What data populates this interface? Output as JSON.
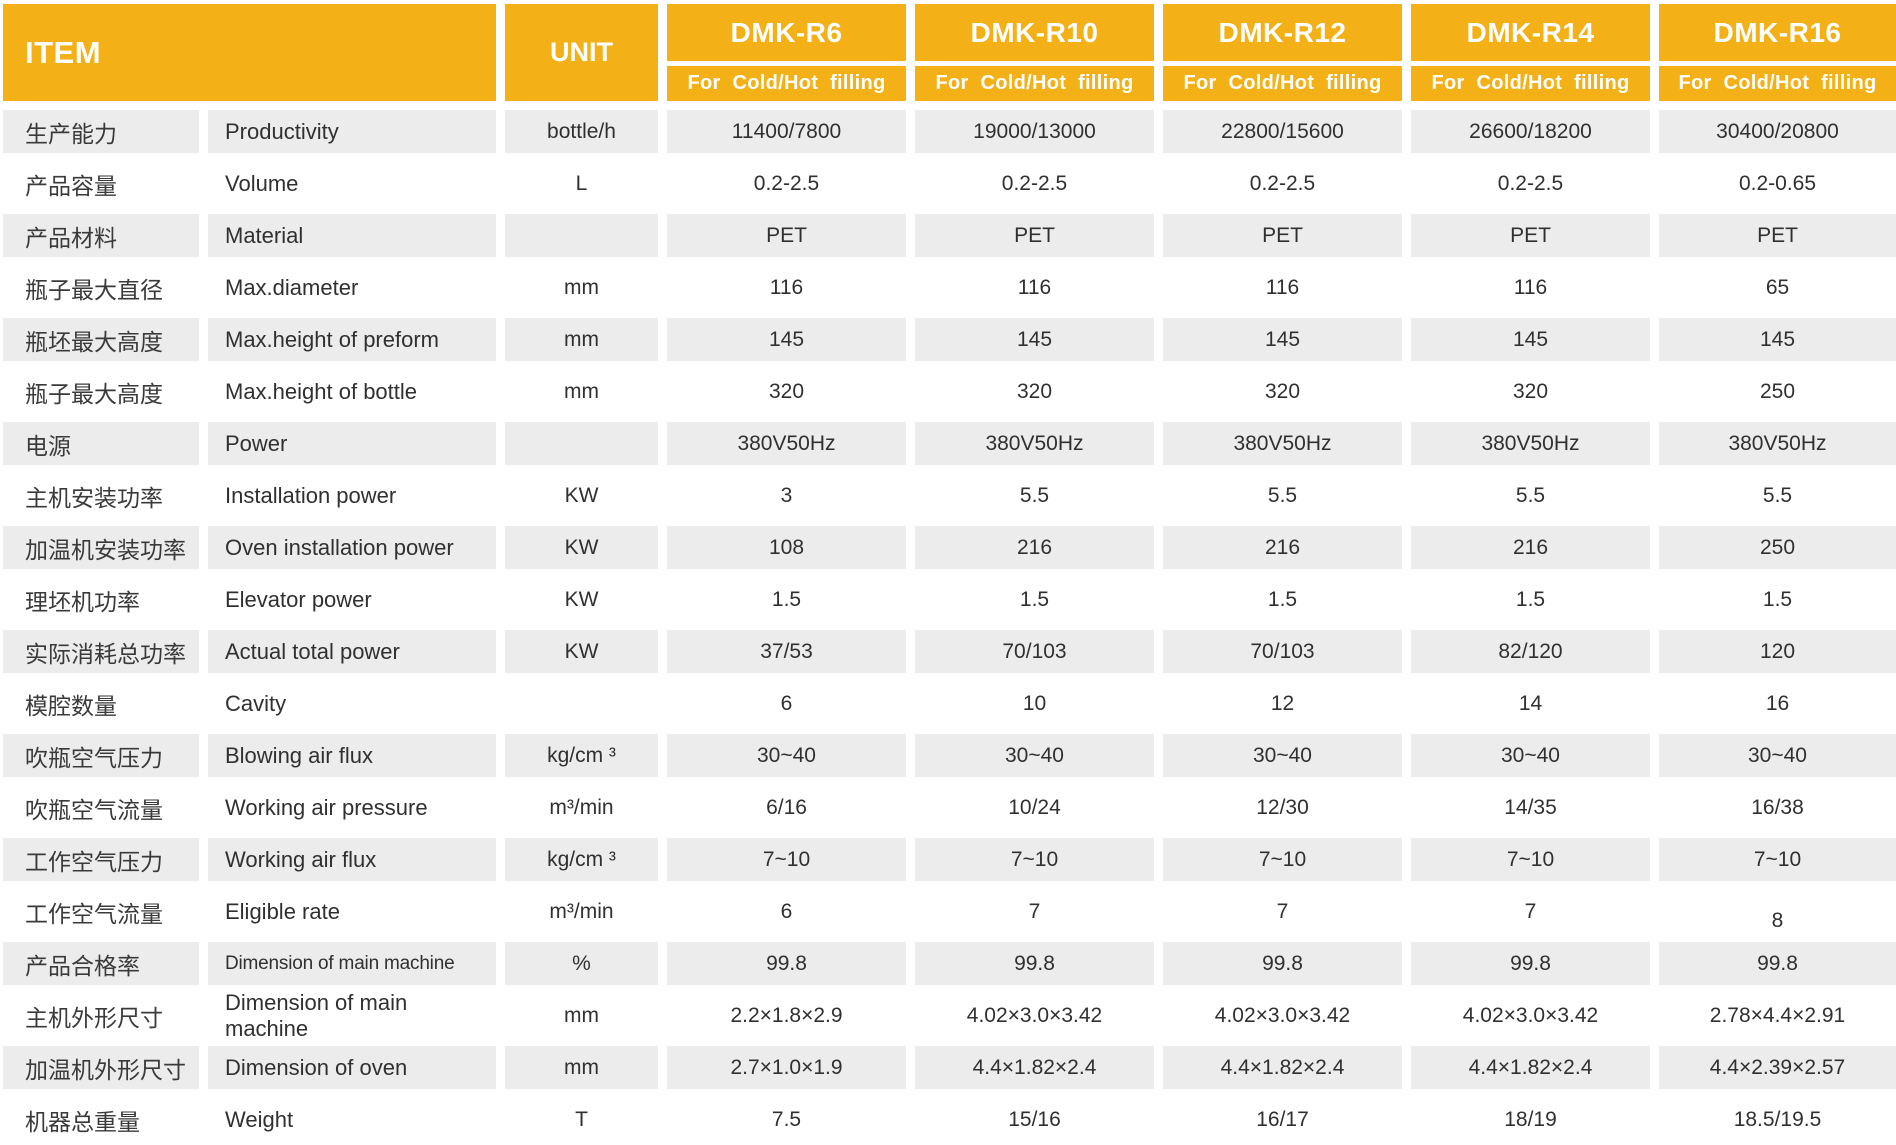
{
  "table": {
    "colors": {
      "header_bg": "#F3B117",
      "row_alt_bg": "#ECECEC",
      "header_text": "#FFFFFF",
      "body_text": "#303030"
    },
    "header": {
      "item_label": "ITEM",
      "unit_label": "UNIT",
      "models": [
        {
          "name": "DMK-R6",
          "sub": "For Cold/Hot filling"
        },
        {
          "name": "DMK-R10",
          "sub": "For Cold/Hot filling"
        },
        {
          "name": "DMK-R12",
          "sub": "For Cold/Hot filling"
        },
        {
          "name": "DMK-R14",
          "sub": "For Cold/Hot filling"
        },
        {
          "name": "DMK-R16",
          "sub": "For Cold/Hot filling"
        }
      ]
    },
    "rows": [
      {
        "zh": "生产能力",
        "en": "Productivity",
        "unit": "bottle/h",
        "values": [
          "11400/7800",
          "19000/13000",
          "22800/15600",
          "26600/18200",
          "30400/20800"
        ]
      },
      {
        "zh": "产品容量",
        "en": "Volume",
        "unit": "L",
        "values": [
          "0.2-2.5",
          "0.2-2.5",
          "0.2-2.5",
          "0.2-2.5",
          "0.2-0.65"
        ]
      },
      {
        "zh": "产品材料",
        "en": "Material",
        "unit": "",
        "values": [
          "PET",
          "PET",
          "PET",
          "PET",
          "PET"
        ]
      },
      {
        "zh": "瓶子最大直径",
        "en": "Max.diameter",
        "unit": "mm",
        "values": [
          "116",
          "116",
          "116",
          "116",
          "65"
        ]
      },
      {
        "zh": "瓶坯最大高度",
        "en": "Max.height of preform",
        "unit": "mm",
        "values": [
          "145",
          "145",
          "145",
          "145",
          "145"
        ]
      },
      {
        "zh": "瓶子最大高度",
        "en": "Max.height of bottle",
        "unit": "mm",
        "values": [
          "320",
          "320",
          "320",
          "320",
          "250"
        ]
      },
      {
        "zh": "电源",
        "en": "Power",
        "unit": "",
        "values": [
          "380V50Hz",
          "380V50Hz",
          "380V50Hz",
          "380V50Hz",
          "380V50Hz"
        ]
      },
      {
        "zh": "主机安装功率",
        "en": "Installation power",
        "unit": "KW",
        "values": [
          "3",
          "5.5",
          "5.5",
          "5.5",
          "5.5"
        ]
      },
      {
        "zh": "加温机安装功率",
        "en": "Oven installation power",
        "unit": "KW",
        "values": [
          "108",
          "216",
          "216",
          "216",
          "250"
        ]
      },
      {
        "zh": "理坯机功率",
        "en": "Elevator power",
        "unit": "KW",
        "values": [
          "1.5",
          "1.5",
          "1.5",
          "1.5",
          "1.5"
        ]
      },
      {
        "zh": "实际消耗总功率",
        "en": "Actual total power",
        "unit": "KW",
        "values": [
          "37/53",
          "70/103",
          "70/103",
          "82/120",
          "120"
        ]
      },
      {
        "zh": "模腔数量",
        "en": "Cavity",
        "unit": "",
        "values": [
          "6",
          "10",
          "12",
          "14",
          "16"
        ]
      },
      {
        "zh": "吹瓶空气压力",
        "en": "Blowing air flux",
        "unit": "kg/cm ³",
        "values": [
          "30~40",
          "30~40",
          "30~40",
          "30~40",
          "30~40"
        ]
      },
      {
        "zh": "吹瓶空气流量",
        "en": "Working air pressure",
        "unit": "m³/min",
        "values": [
          "6/16",
          "10/24",
          "12/30",
          "14/35",
          "16/38"
        ]
      },
      {
        "zh": "工作空气压力",
        "en": "Working air flux",
        "unit": "kg/cm ³",
        "values": [
          "7~10",
          "7~10",
          "7~10",
          "7~10",
          "7~10"
        ]
      },
      {
        "zh": "工作空气流量",
        "en": "Eligible rate",
        "unit": "m³/min",
        "values": [
          "6",
          "7",
          "7",
          "7",
          "8"
        ]
      },
      {
        "zh": "产品合格率",
        "en": "Dimension of main machine",
        "unit": "%",
        "values": [
          "99.8",
          "99.8",
          "99.8",
          "99.8",
          "99.8"
        ]
      },
      {
        "zh": "主机外形尺寸",
        "en": "Dimension of main machine",
        "unit": "mm",
        "values": [
          "2.2×1.8×2.9",
          "4.02×3.0×3.42",
          "4.02×3.0×3.42",
          "4.02×3.0×3.42",
          "2.78×4.4×2.91"
        ]
      },
      {
        "zh": "加温机外形尺寸",
        "en": "Dimension of oven",
        "unit": "mm",
        "values": [
          "2.7×1.0×1.9",
          "4.4×1.82×2.4",
          "4.4×1.82×2.4",
          "4.4×1.82×2.4",
          "4.4×2.39×2.57"
        ]
      },
      {
        "zh": "机器总重量",
        "en": "Weight",
        "unit": "T",
        "values": [
          "7.5",
          "15/16",
          "16/17",
          "18/19",
          "18.5/19.5"
        ]
      }
    ]
  }
}
